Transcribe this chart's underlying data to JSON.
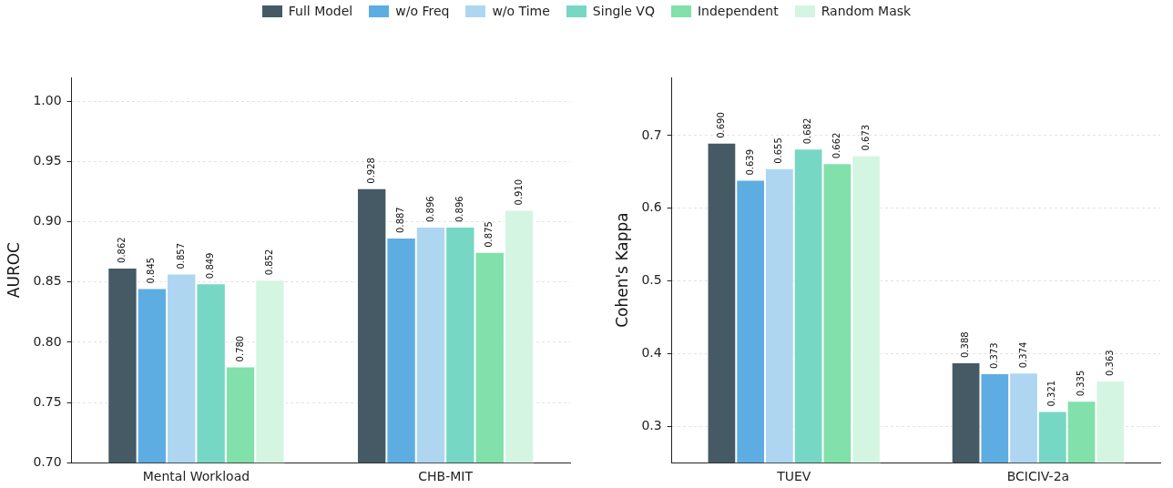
{
  "chart_data": [
    {
      "type": "bar",
      "categories": [
        "Mental Workload",
        "CHB-MIT"
      ],
      "ylabel": "AUROC",
      "ylim": [
        0.7,
        1.02
      ],
      "yticks": [
        {
          "value": 0.7,
          "label": "0.70"
        },
        {
          "value": 0.75,
          "label": "0.75"
        },
        {
          "value": 0.8,
          "label": "0.80"
        },
        {
          "value": 0.85,
          "label": "0.85"
        },
        {
          "value": 0.9,
          "label": "0.90"
        },
        {
          "value": 0.95,
          "label": "0.95"
        },
        {
          "value": 1.0,
          "label": "1.00"
        }
      ],
      "grid": "y",
      "legend": "top",
      "series": [
        {
          "name": "Full Model",
          "color": "#455a64",
          "values": [
            0.862,
            0.928
          ],
          "value_labels": [
            "0.862",
            "0.928"
          ]
        },
        {
          "name": "w/o Freq",
          "color": "#5dade2",
          "values": [
            0.845,
            0.887
          ],
          "value_labels": [
            "0.845",
            "0.887"
          ]
        },
        {
          "name": "w/o Time",
          "color": "#aed6f1",
          "values": [
            0.857,
            0.896
          ],
          "value_labels": [
            "0.857",
            "0.896"
          ]
        },
        {
          "name": "Single VQ",
          "color": "#76d7c4",
          "values": [
            0.849,
            0.896
          ],
          "value_labels": [
            "0.849",
            "0.896"
          ]
        },
        {
          "name": "Independent",
          "color": "#82e0aa",
          "values": [
            0.78,
            0.875
          ],
          "value_labels": [
            "0.780",
            "0.875"
          ]
        },
        {
          "name": "Random Mask",
          "color": "#d5f5e3",
          "values": [
            0.852,
            0.91
          ],
          "value_labels": [
            "0.852",
            "0.910"
          ]
        }
      ]
    },
    {
      "type": "bar",
      "categories": [
        "TUEV",
        "BCICIV-2a"
      ],
      "ylabel": "Cohen's Kappa",
      "ylim": [
        0.25,
        0.78
      ],
      "yticks": [
        0.3,
        0.4,
        0.5,
        0.6,
        0.7
      ],
      "grid": "y",
      "series": [
        {
          "color": "#455a64",
          "values": [
            0.69,
            0.388
          ],
          "value_labels": [
            "0.690",
            "0.388"
          ]
        },
        {
          "color": "#5dade2",
          "values": [
            0.639,
            0.373
          ],
          "value_labels": [
            "0.639",
            "0.373"
          ]
        },
        {
          "color": "#aed6f1",
          "values": [
            0.655,
            0.374
          ],
          "value_labels": [
            "0.655",
            "0.374"
          ]
        },
        {
          "color": "#76d7c4",
          "values": [
            0.682,
            0.321
          ],
          "value_labels": [
            "0.682",
            "0.321"
          ]
        },
        {
          "color": "#82e0aa",
          "values": [
            0.662,
            0.335
          ],
          "value_labels": [
            "0.662",
            "0.335"
          ]
        },
        {
          "color": "#d5f5e3",
          "values": [
            0.673,
            0.363
          ],
          "value_labels": [
            "0.673",
            "0.363"
          ]
        }
      ]
    }
  ]
}
